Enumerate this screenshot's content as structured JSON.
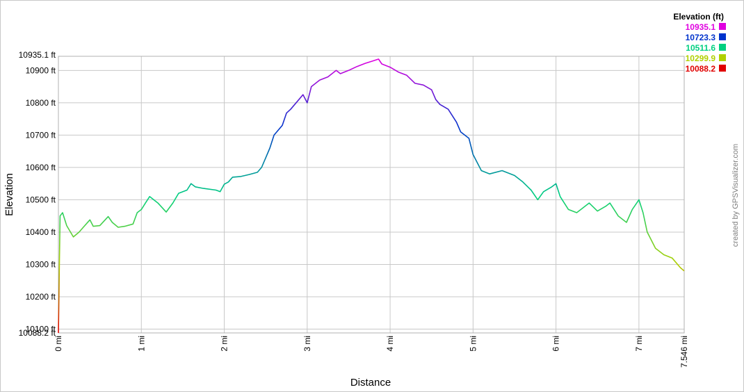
{
  "chart_data": {
    "type": "line",
    "title": "",
    "xlabel": "Distance",
    "ylabel": "Elevation",
    "x_unit": "mi",
    "y_unit": "ft",
    "xlim": [
      0,
      7.546
    ],
    "ylim": [
      10088.2,
      10935.1
    ],
    "grid": true,
    "y_ticks": [
      {
        "value": 10935.1,
        "label": "10935.1 ft"
      },
      {
        "value": 10900,
        "label": "10900 ft"
      },
      {
        "value": 10800,
        "label": "10800 ft"
      },
      {
        "value": 10700,
        "label": "10700 ft"
      },
      {
        "value": 10600,
        "label": "10600 ft"
      },
      {
        "value": 10500,
        "label": "10500 ft"
      },
      {
        "value": 10400,
        "label": "10400 ft"
      },
      {
        "value": 10300,
        "label": "10300 ft"
      },
      {
        "value": 10200,
        "label": "10200 ft"
      },
      {
        "value": 10100,
        "label": "10100 ft"
      },
      {
        "value": 10088.2,
        "label": "10088.2 ft"
      }
    ],
    "x_ticks": [
      {
        "value": 0,
        "label": "0 mi"
      },
      {
        "value": 1,
        "label": "1 mi"
      },
      {
        "value": 2,
        "label": "2 mi"
      },
      {
        "value": 3,
        "label": "3 mi"
      },
      {
        "value": 4,
        "label": "4 mi"
      },
      {
        "value": 5,
        "label": "5 mi"
      },
      {
        "value": 6,
        "label": "6 mi"
      },
      {
        "value": 7,
        "label": "7 mi"
      },
      {
        "value": 7.546,
        "label": "7.546 mi"
      }
    ],
    "legend": {
      "title": "Elevation (ft)",
      "placement": "top-right",
      "entries": [
        {
          "label": "10935.1",
          "color": "#e000e0"
        },
        {
          "label": "10723.3",
          "color": "#0033cc"
        },
        {
          "label": "10511.6",
          "color": "#00d080"
        },
        {
          "label": "10299.9",
          "color": "#b0d000"
        },
        {
          "label": "10088.2",
          "color": "#e00000"
        }
      ]
    },
    "series": [
      {
        "x": [
          0,
          0.02,
          0.05,
          0.1,
          0.18,
          0.25,
          0.3,
          0.38,
          0.42,
          0.5,
          0.6,
          0.65,
          0.72,
          0.8,
          0.9,
          0.95,
          1.0,
          1.05,
          1.1,
          1.2,
          1.3,
          1.38,
          1.45,
          1.55,
          1.6,
          1.65,
          1.75,
          1.9,
          1.95,
          2.0,
          2.05,
          2.1,
          2.2,
          2.3,
          2.4,
          2.45,
          2.5,
          2.55,
          2.6,
          2.7,
          2.75,
          2.8,
          2.9,
          2.95,
          3.0,
          3.05,
          3.15,
          3.25,
          3.35,
          3.4,
          3.5,
          3.6,
          3.7,
          3.8,
          3.86,
          3.9,
          4.0,
          4.1,
          4.2,
          4.3,
          4.4,
          4.5,
          4.55,
          4.6,
          4.7,
          4.8,
          4.85,
          4.95,
          5.0,
          5.1,
          5.2,
          5.35,
          5.5,
          5.6,
          5.7,
          5.78,
          5.85,
          5.95,
          6.0,
          6.05,
          6.15,
          6.25,
          6.3,
          6.4,
          6.5,
          6.6,
          6.65,
          6.75,
          6.85,
          6.92,
          7.0,
          7.05,
          7.1,
          7.2,
          7.3,
          7.4,
          7.5,
          7.546
        ],
        "y": [
          10088.2,
          10450,
          10460,
          10420,
          10385,
          10400,
          10415,
          10438,
          10418,
          10420,
          10448,
          10430,
          10415,
          10418,
          10425,
          10460,
          10470,
          10490,
          10510,
          10490,
          10462,
          10490,
          10520,
          10530,
          10550,
          10540,
          10535,
          10530,
          10525,
          10548,
          10555,
          10570,
          10572,
          10578,
          10585,
          10600,
          10630,
          10660,
          10700,
          10730,
          10768,
          10780,
          10810,
          10825,
          10800,
          10850,
          10870,
          10880,
          10900,
          10890,
          10900,
          10912,
          10922,
          10930,
          10935.1,
          10920,
          10910,
          10895,
          10885,
          10860,
          10855,
          10840,
          10810,
          10795,
          10780,
          10740,
          10710,
          10690,
          10640,
          10590,
          10580,
          10590,
          10575,
          10555,
          10530,
          10500,
          10525,
          10540,
          10550,
          10510,
          10470,
          10460,
          10470,
          10490,
          10465,
          10480,
          10490,
          10450,
          10430,
          10470,
          10500,
          10460,
          10400,
          10350,
          10330,
          10320,
          10290,
          10280
        ]
      }
    ],
    "credit": "created by GPSVisualizer.com"
  }
}
